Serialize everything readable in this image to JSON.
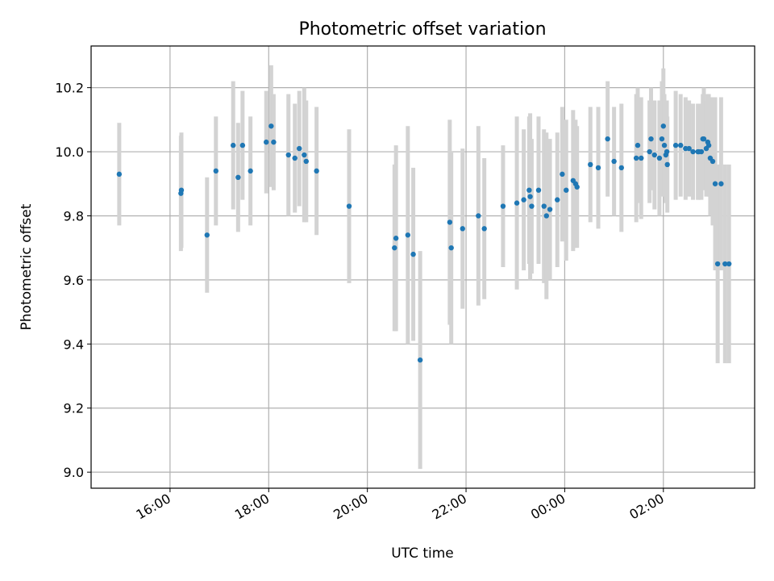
{
  "chart_data": {
    "type": "scatter",
    "title": "Photometric offset variation",
    "xlabel": "UTC time",
    "ylabel": "Photometric offset",
    "x_ticks": [
      "16:00",
      "18:00",
      "20:00",
      "22:00",
      "00:00",
      "02:00"
    ],
    "x_tick_hours": [
      16,
      18,
      20,
      22,
      24,
      26
    ],
    "xlim_hours": [
      14.4,
      27.85
    ],
    "y_ticks": [
      "9.0",
      "9.2",
      "9.4",
      "9.6",
      "9.8",
      "10.0",
      "10.2"
    ],
    "y_tick_values": [
      9.0,
      9.2,
      9.4,
      9.6,
      9.8,
      10.0,
      10.2
    ],
    "ylim": [
      8.95,
      10.33
    ],
    "grid": true,
    "colors": {
      "points": "#1f77b4",
      "error_bars": "#d3d3d3",
      "grid": "#b0b0b0"
    },
    "series": [
      {
        "x_hours": [
          14.97,
          16.22,
          16.23,
          16.75,
          16.93,
          17.28,
          17.38,
          17.47,
          17.63,
          17.95,
          18.05,
          18.1,
          18.4,
          18.53,
          18.62,
          18.72,
          18.76,
          18.97,
          19.63,
          20.55,
          20.58,
          20.82,
          20.93,
          21.07,
          21.67,
          21.7,
          21.93,
          22.25,
          22.37,
          22.75,
          23.03,
          23.17,
          23.28,
          23.3,
          23.33,
          23.47,
          23.58,
          23.63,
          23.7,
          23.85,
          23.95,
          24.03,
          24.17,
          24.22,
          24.25,
          24.52,
          24.68,
          24.87,
          25.0,
          25.15,
          25.45,
          25.48,
          25.55,
          25.72,
          25.75,
          25.82,
          25.92,
          25.97,
          26.0,
          26.02,
          26.05,
          26.07,
          26.08,
          26.25,
          26.35,
          26.45,
          26.52,
          26.6,
          26.7,
          26.72,
          26.77,
          26.8,
          26.82,
          26.87,
          26.9,
          26.92,
          26.95,
          27.0,
          27.05,
          27.1,
          27.17,
          27.25,
          27.33
        ],
        "y": [
          9.93,
          9.87,
          9.88,
          9.74,
          9.94,
          10.02,
          9.92,
          10.02,
          9.94,
          10.03,
          10.08,
          10.03,
          9.99,
          9.98,
          10.01,
          9.99,
          9.97,
          9.94,
          9.83,
          9.7,
          9.73,
          9.74,
          9.68,
          9.35,
          9.78,
          9.7,
          9.76,
          9.8,
          9.76,
          9.83,
          9.84,
          9.85,
          9.88,
          9.86,
          9.83,
          9.88,
          9.83,
          9.8,
          9.82,
          9.85,
          9.93,
          9.88,
          9.91,
          9.9,
          9.89,
          9.96,
          9.95,
          10.04,
          9.97,
          9.95,
          9.98,
          10.02,
          9.98,
          10.0,
          10.04,
          9.99,
          9.98,
          10.04,
          10.08,
          10.02,
          9.99,
          10.0,
          9.96,
          10.02,
          10.02,
          10.01,
          10.01,
          10.0,
          10.0,
          10.0,
          10.0,
          10.04,
          10.04,
          10.01,
          10.03,
          10.02,
          9.98,
          9.97,
          9.9,
          9.65,
          9.9,
          9.65,
          9.65
        ],
        "err": [
          0.16,
          0.18,
          0.18,
          0.18,
          0.17,
          0.2,
          0.17,
          0.17,
          0.17,
          0.16,
          0.19,
          0.15,
          0.19,
          0.17,
          0.18,
          0.21,
          0.19,
          0.2,
          0.24,
          0.26,
          0.29,
          0.34,
          0.27,
          0.34,
          0.32,
          0.3,
          0.25,
          0.28,
          0.22,
          0.19,
          0.27,
          0.22,
          0.23,
          0.26,
          0.21,
          0.23,
          0.24,
          0.26,
          0.22,
          0.21,
          0.21,
          0.22,
          0.22,
          0.2,
          0.19,
          0.18,
          0.19,
          0.18,
          0.17,
          0.2,
          0.2,
          0.18,
          0.19,
          0.16,
          0.16,
          0.17,
          0.18,
          0.18,
          0.18,
          0.16,
          0.15,
          0.16,
          0.15,
          0.17,
          0.16,
          0.16,
          0.15,
          0.15,
          0.15,
          0.15,
          0.15,
          0.14,
          0.16,
          0.15,
          0.15,
          0.16,
          0.18,
          0.2,
          0.27,
          0.31,
          0.27,
          0.31,
          0.31
        ]
      }
    ]
  }
}
